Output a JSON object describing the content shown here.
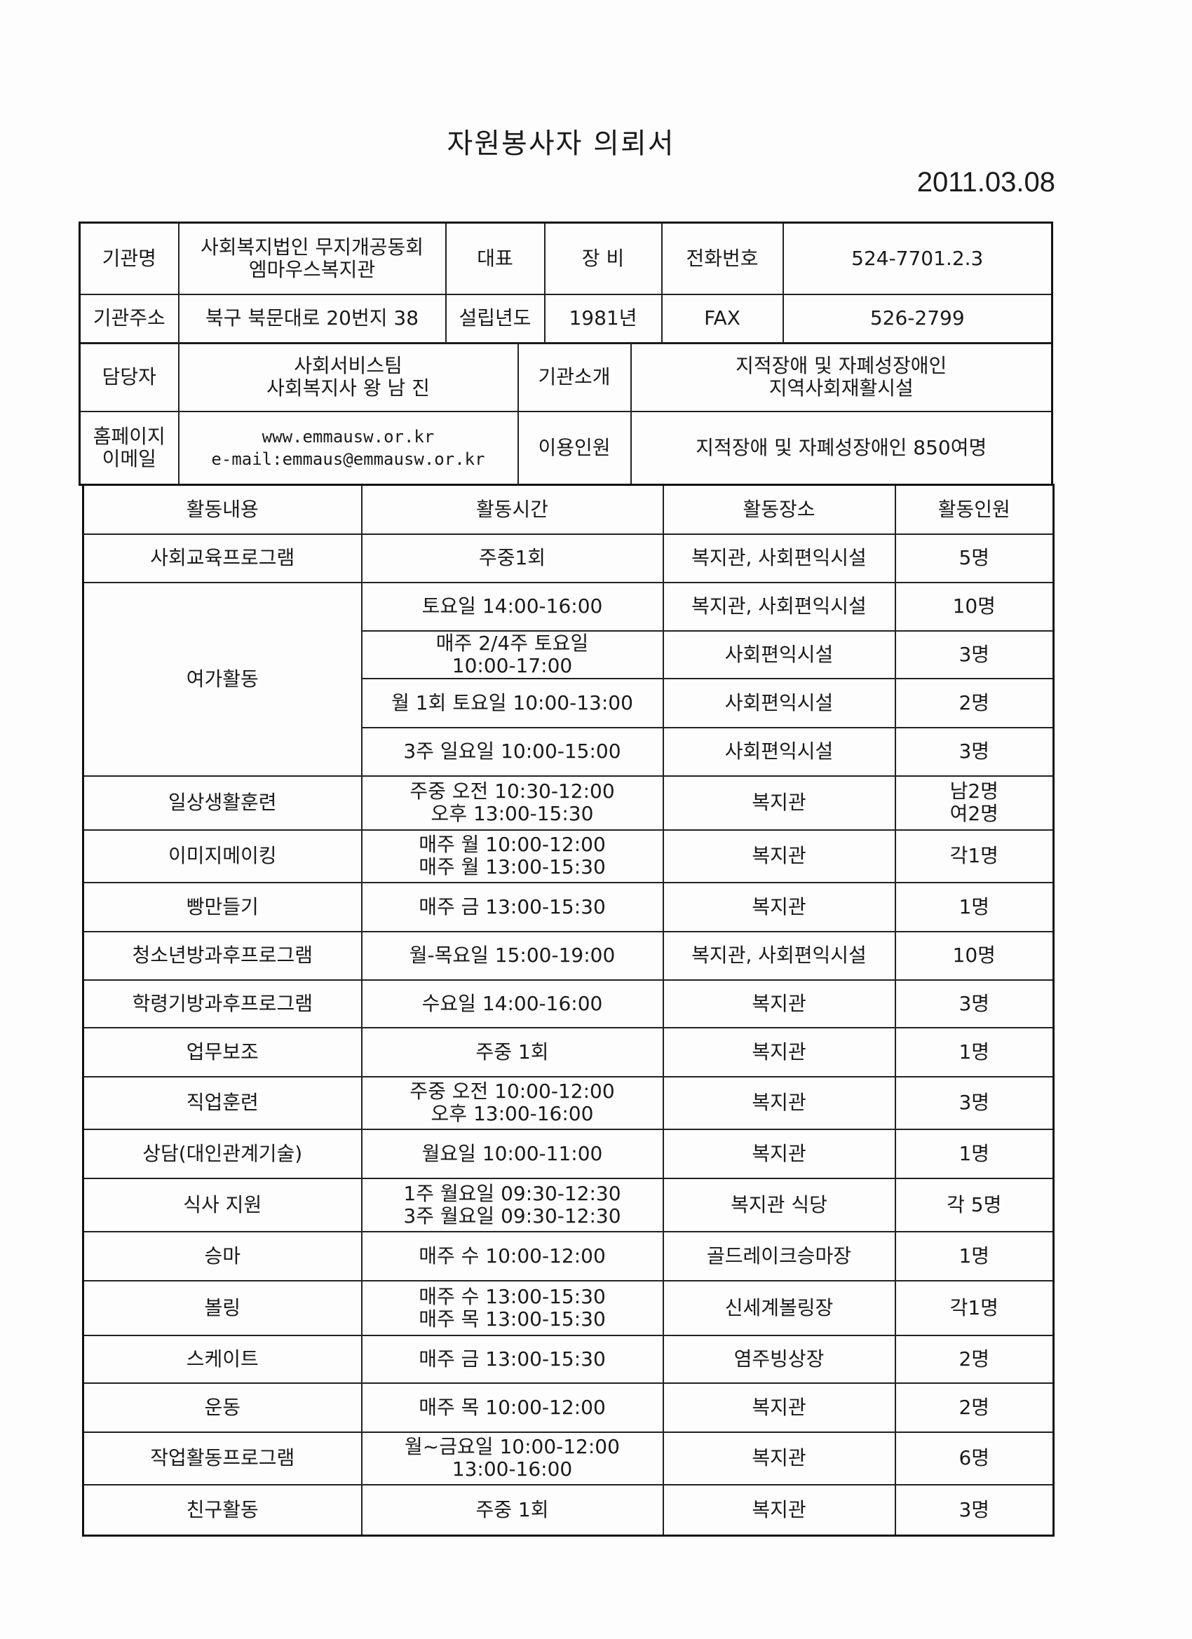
{
  "title": "자원봉사자 의뢰서",
  "date": "2011.03.08",
  "info": {
    "org_name_label": "기관명",
    "org_name": [
      "사회복지법인 무지개공동회",
      "엠마우스복지관"
    ],
    "rep_label": "대표",
    "rep": "장 비",
    "phone_label": "전화번호",
    "phone": "524-7701.2.3",
    "address_label": "기관주소",
    "address": "북구 북문대로 20번지 38",
    "founded_label": "설립년도",
    "founded": "1981년",
    "fax_label": "FAX",
    "fax": "526-2799",
    "contact_label": "담당자",
    "contact": [
      "사회서비스팀",
      "사회복지사 왕 남 진"
    ],
    "intro_label": "기관소개",
    "intro": [
      "지적장애 및 자폐성장애인",
      "지역사회재활시설"
    ],
    "web_label": [
      "홈페이지",
      "이메일"
    ],
    "web": [
      "www.emmausw.or.kr",
      "e-mail:emmaus@emmausw.or.kr"
    ],
    "users_label": "이용인원",
    "users": "지적장애 및 자폐성장애인 850여명"
  },
  "activities": {
    "headers": [
      "활동내용",
      "활동시간",
      "활동장소",
      "활동인원"
    ],
    "rows": [
      {
        "name": "사회교육프로그램",
        "time": [
          "주중1회"
        ],
        "place": "복지관, 사회편익시설",
        "people": [
          "5명"
        ]
      },
      {
        "name": "여가활동",
        "span": 4,
        "time": [
          "토요일 14:00-16:00"
        ],
        "place": "복지관, 사회편익시설",
        "people": [
          "10명"
        ]
      },
      {
        "time": [
          "매주 2/4주 토요일",
          "10:00-17:00"
        ],
        "place": "사회편익시설",
        "people": [
          "3명"
        ]
      },
      {
        "time": [
          "월 1회 토요일 10:00-13:00"
        ],
        "place": "사회편익시설",
        "people": [
          "2명"
        ]
      },
      {
        "time": [
          "3주 일요일 10:00-15:00"
        ],
        "place": "사회편익시설",
        "people": [
          "3명"
        ]
      },
      {
        "name": "일상생활훈련",
        "time": [
          "주중 오전 10:30-12:00",
          "오후 13:00-15:30"
        ],
        "place": "복지관",
        "people": [
          "남2명",
          "여2명"
        ]
      },
      {
        "name": "이미지메이킹",
        "time": [
          "매주 월 10:00-12:00",
          "매주 월 13:00-15:30"
        ],
        "place": "복지관",
        "people": [
          "각1명"
        ]
      },
      {
        "name": "빵만들기",
        "time": [
          "매주 금 13:00-15:30"
        ],
        "place": "복지관",
        "people": [
          "1명"
        ]
      },
      {
        "name": "청소년방과후프로그램",
        "time": [
          "월-목요일 15:00-19:00"
        ],
        "place": "복지관, 사회편익시설",
        "people": [
          "10명"
        ]
      },
      {
        "name": "학령기방과후프로그램",
        "time": [
          "수요일 14:00-16:00"
        ],
        "place": "복지관",
        "people": [
          "3명"
        ]
      },
      {
        "name": "업무보조",
        "time": [
          "주중 1회"
        ],
        "place": "복지관",
        "people": [
          "1명"
        ]
      },
      {
        "name": "직업훈련",
        "time": [
          "주중 오전 10:00-12:00",
          "오후 13:00-16:00"
        ],
        "place": "복지관",
        "people": [
          "3명"
        ]
      },
      {
        "name": "상담(대인관계기술)",
        "time": [
          "월요일 10:00-11:00"
        ],
        "place": "복지관",
        "people": [
          "1명"
        ]
      },
      {
        "name": "식사 지원",
        "time": [
          "1주 월요일 09:30-12:30",
          "3주 월요일 09:30-12:30"
        ],
        "place": "복지관 식당",
        "people": [
          "각 5명"
        ]
      },
      {
        "name": "승마",
        "time": [
          "매주 수 10:00-12:00"
        ],
        "place": "골드레이크승마장",
        "people": [
          "1명"
        ]
      },
      {
        "name": "볼링",
        "time": [
          "매주 수 13:00-15:30",
          "매주 목 13:00-15:30"
        ],
        "place": "신세계볼링장",
        "people": [
          "각1명"
        ]
      },
      {
        "name": "스케이트",
        "time": [
          "매주 금 13:00-15:30"
        ],
        "place": "염주빙상장",
        "people": [
          "2명"
        ]
      },
      {
        "name": "운동",
        "time": [
          "매주 목 10:00-12:00"
        ],
        "place": "복지관",
        "people": [
          "2명"
        ]
      },
      {
        "name": "작업활동프로그램",
        "time": [
          "월~금요일 10:00-12:00",
          "13:00-16:00"
        ],
        "place": "복지관",
        "people": [
          "6명"
        ]
      },
      {
        "name": "친구활동",
        "time": [
          "주중 1회"
        ],
        "place": "복지관",
        "people": [
          "3명"
        ]
      }
    ]
  }
}
